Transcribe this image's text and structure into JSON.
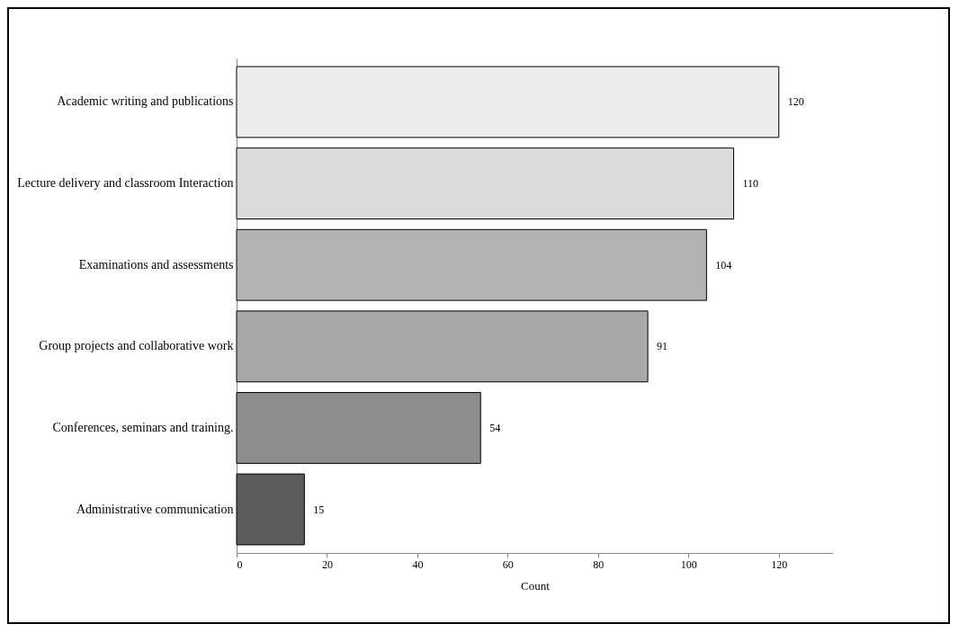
{
  "chart_data": {
    "type": "bar",
    "orientation": "horizontal",
    "xlabel": "Count",
    "categories": [
      "Academic writing and publications",
      "Lecture delivery and classroom Interaction",
      "Examinations and assessments",
      "Group projects and collaborative work",
      "Conferences, seminars and training.",
      "Administrative communication"
    ],
    "values": [
      120,
      110,
      104,
      91,
      54,
      15
    ],
    "colors": [
      "#ececec",
      "#dcdcdc",
      "#b4b4b4",
      "#a8a8a8",
      "#8c8c8c",
      "#5c5c5c"
    ],
    "xlim": [
      0,
      132
    ],
    "xticks": [
      0,
      20,
      40,
      60,
      80,
      100,
      120
    ],
    "grid": false,
    "legend": false,
    "data_labels": true
  }
}
